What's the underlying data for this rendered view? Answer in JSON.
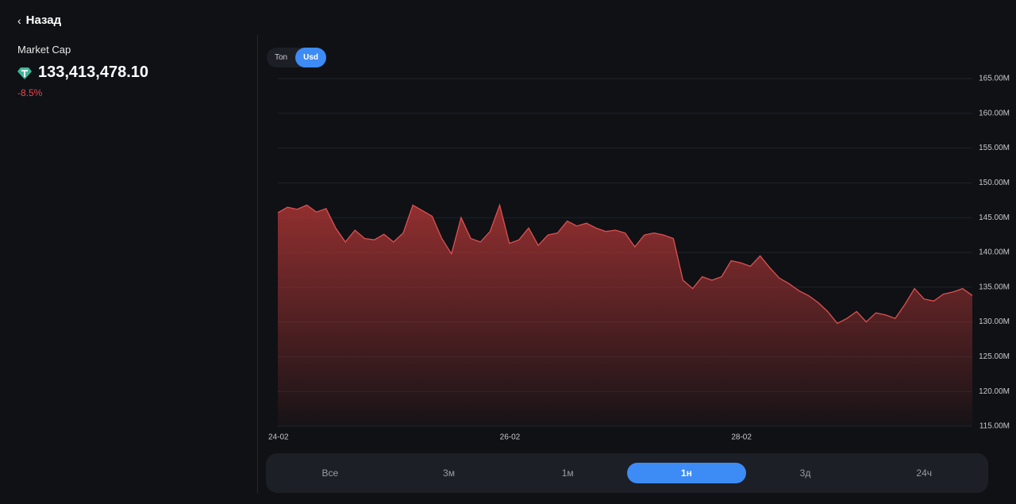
{
  "header": {
    "back": "Назад"
  },
  "stats": {
    "label": "Market Cap",
    "value": "133,413,478.10",
    "change": "-8.5%"
  },
  "currency_toggle": {
    "options": [
      "Ton",
      "Usd"
    ],
    "active": 1
  },
  "periods": {
    "options": [
      "Все",
      "3м",
      "1м",
      "1н",
      "3д",
      "24ч"
    ],
    "active": 3
  },
  "chart_data": {
    "type": "area",
    "color": "#e05050",
    "categories": [
      "24-02",
      null,
      null,
      null,
      null,
      null,
      null,
      null,
      null,
      null,
      null,
      null,
      null,
      null,
      null,
      null,
      null,
      null,
      null,
      null,
      null,
      null,
      null,
      null,
      "26-02",
      null,
      null,
      null,
      null,
      null,
      null,
      null,
      null,
      null,
      null,
      null,
      null,
      null,
      null,
      null,
      null,
      null,
      null,
      null,
      null,
      null,
      null,
      null,
      "28-02",
      null,
      null,
      null,
      null,
      null,
      null,
      null,
      null,
      null,
      null,
      null,
      null,
      null,
      null,
      null,
      null,
      null,
      null,
      null,
      null,
      null,
      null,
      null,
      null
    ],
    "values": [
      145.7,
      146.5,
      146.2,
      146.8,
      145.8,
      146.3,
      143.5,
      141.5,
      143.2,
      142.0,
      141.8,
      142.6,
      141.5,
      142.8,
      146.8,
      146.0,
      145.2,
      142.0,
      139.8,
      145.0,
      142.0,
      141.5,
      143.0,
      146.8,
      141.3,
      141.8,
      143.5,
      141.0,
      142.5,
      142.8,
      144.5,
      143.8,
      144.2,
      143.5,
      143.0,
      143.2,
      142.8,
      140.8,
      142.5,
      142.8,
      142.5,
      142.0,
      136.0,
      134.8,
      136.5,
      136.0,
      136.5,
      138.8,
      138.5,
      138.0,
      139.5,
      137.8,
      136.3,
      135.5,
      134.5,
      133.8,
      132.8,
      131.5,
      129.8,
      130.5,
      131.5,
      130.0,
      131.3,
      131.0,
      130.5,
      132.5,
      134.8,
      133.3,
      133.0,
      134.0,
      134.3,
      134.8,
      133.8
    ],
    "ylim": [
      115,
      165
    ],
    "yticks": [
      {
        "value": 115,
        "label": "115.00M"
      },
      {
        "value": 120,
        "label": "120.00M"
      },
      {
        "value": 125,
        "label": "125.00M"
      },
      {
        "value": 130,
        "label": "130.00M"
      },
      {
        "value": 135,
        "label": "135.00M"
      },
      {
        "value": 140,
        "label": "140.00M"
      },
      {
        "value": 145,
        "label": "145.00M"
      },
      {
        "value": 150,
        "label": "150.00M"
      },
      {
        "value": 155,
        "label": "155.00M"
      },
      {
        "value": 160,
        "label": "160.00M"
      },
      {
        "value": 165,
        "label": "165.00M"
      }
    ],
    "grid": true
  }
}
